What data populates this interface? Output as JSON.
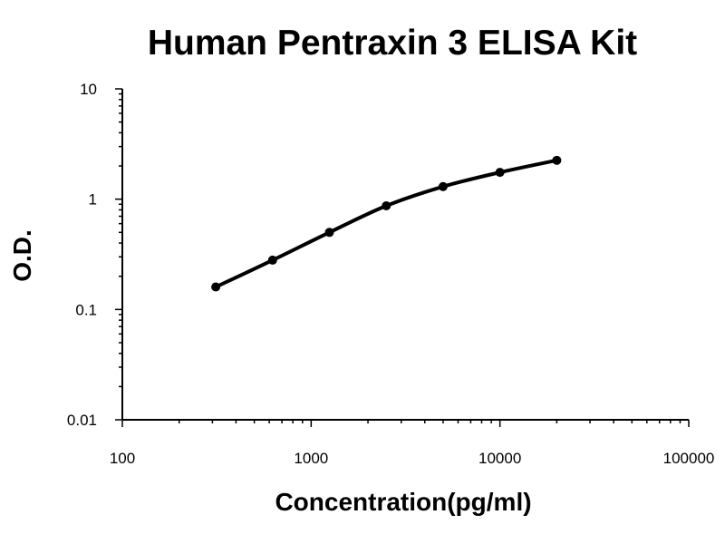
{
  "chart_data": {
    "type": "line",
    "title": "Human Pentraxin 3 ELISA Kit",
    "xlabel": "Concentration(pg/ml)",
    "ylabel": "O.D.",
    "x_scale": "log",
    "y_scale": "log",
    "xlim": [
      100,
      100000
    ],
    "ylim": [
      0.01,
      10
    ],
    "x_ticks": [
      {
        "value": 100,
        "label": "100"
      },
      {
        "value": 1000,
        "label": "1000"
      },
      {
        "value": 10000,
        "label": "10000"
      },
      {
        "value": 100000,
        "label": "100000"
      }
    ],
    "y_ticks": [
      {
        "value": 10,
        "label": "10"
      },
      {
        "value": 1,
        "label": "1"
      },
      {
        "value": 0.1,
        "label": "0.1"
      },
      {
        "value": 0.01,
        "label": "0.01"
      }
    ],
    "grid": false,
    "legend": "none",
    "series": [
      {
        "x": [
          312.5,
          625,
          1250,
          2500,
          5000,
          10000,
          20000
        ],
        "y": [
          0.16,
          0.28,
          0.5,
          0.87,
          1.3,
          1.75,
          2.25
        ]
      }
    ],
    "color": "#000000"
  }
}
